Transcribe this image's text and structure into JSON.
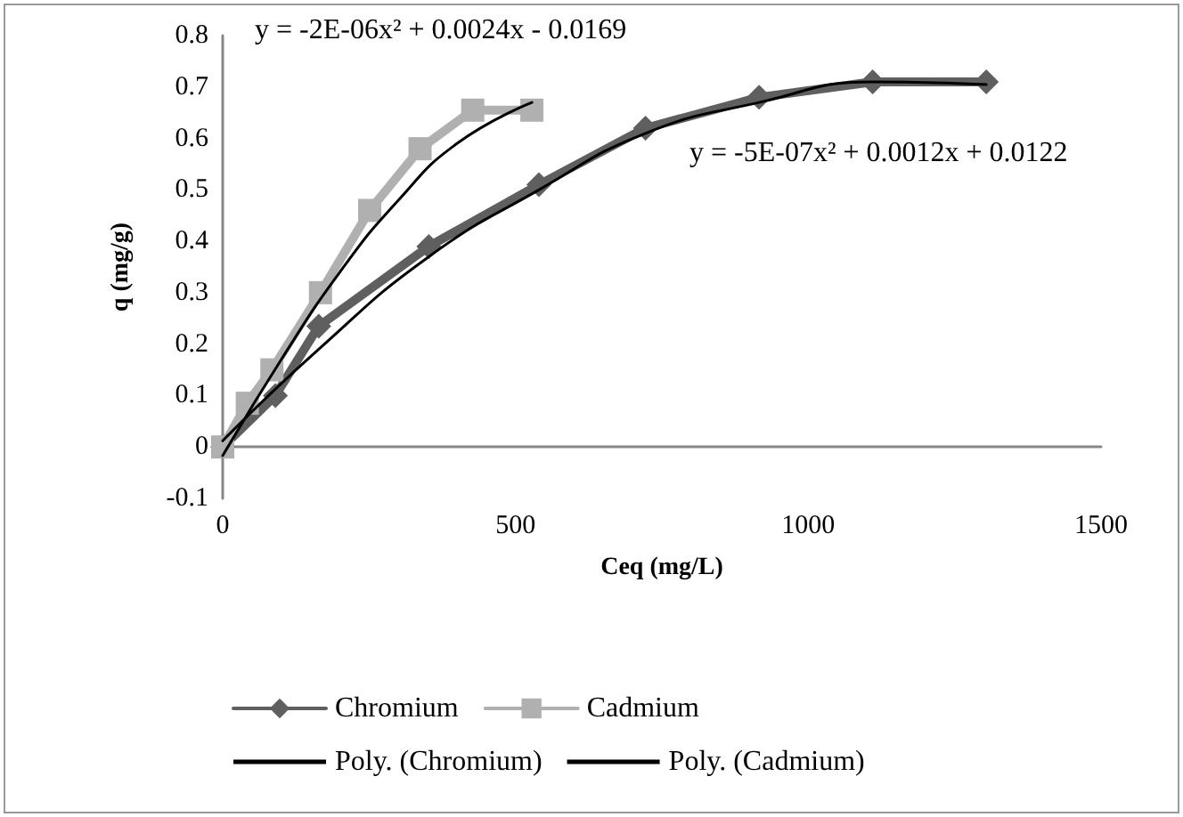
{
  "chart_data": {
    "type": "line",
    "xlabel": "Ceq (mg/L)",
    "ylabel": "q (mg/g)",
    "xlim": [
      0,
      1500
    ],
    "xticks": [
      0,
      500,
      1000,
      1500
    ],
    "ylim": [
      -0.1,
      0.8
    ],
    "yticks": [
      -0.1,
      0,
      0.1,
      0.2,
      0.3,
      0.4,
      0.5,
      0.6,
      0.7,
      0.8
    ],
    "grid": false,
    "legend": "bottom",
    "series": [
      {
        "name": "Chromium",
        "color": "#5f5f5f",
        "marker": "diamond",
        "x": [
          0,
          90,
          164,
          352,
          540,
          722,
          916,
          1110,
          1304
        ],
        "values": [
          0,
          0.1,
          0.235,
          0.39,
          0.51,
          0.62,
          0.68,
          0.71,
          0.71
        ]
      },
      {
        "name": "Cadmium",
        "color": "#b0b0b0",
        "marker": "square",
        "x": [
          0,
          42,
          84,
          167,
          251,
          337,
          427,
          528
        ],
        "values": [
          0,
          0.085,
          0.15,
          0.3,
          0.46,
          0.58,
          0.655,
          0.655
        ]
      },
      {
        "name": "Poly. (Chromium)",
        "color": "#000000",
        "marker": "none",
        "x": [
          0,
          164,
          352,
          540,
          722,
          916,
          1110,
          1304
        ],
        "values": [
          0.012,
          0.19,
          0.37,
          0.5,
          0.61,
          0.67,
          0.71,
          0.705
        ]
      },
      {
        "name": "Poly. (Cadmium)",
        "color": "#000000",
        "marker": "none",
        "x": [
          0,
          100,
          200,
          300,
          400,
          528
        ],
        "values": [
          -0.017,
          0.17,
          0.34,
          0.48,
          0.59,
          0.67
        ]
      }
    ],
    "annotations": [
      "y = -2E-06x² + 0.0024x - 0.0169",
      "y = -5E-07x² + 0.0012x + 0.0122"
    ]
  }
}
